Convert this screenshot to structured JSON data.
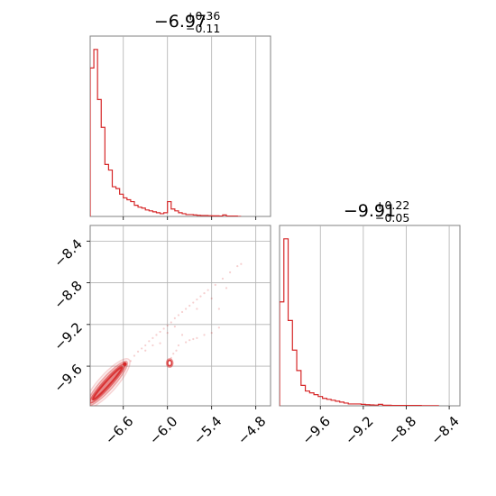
{
  "chart_data": {
    "type": "corner",
    "color": "#d62728",
    "grid": true,
    "panels": [
      {
        "id": "hist_x",
        "type": "histogram",
        "title": {
          "value": "−6.97",
          "plus": "+0.36",
          "minus": "−0.11"
        },
        "xlim": [
          -7.05,
          -4.6
        ],
        "x_ticks": [
          -6.6,
          -6.0,
          -5.4,
          -4.8
        ],
        "bin_edges": [
          -7.05,
          -7.0,
          -6.95,
          -6.9,
          -6.85,
          -6.8,
          -6.75,
          -6.7,
          -6.65,
          -6.6,
          -6.55,
          -6.5,
          -6.45,
          -6.4,
          -6.35,
          -6.3,
          -6.25,
          -6.2,
          -6.15,
          -6.1,
          -6.05,
          -6.0,
          -5.95,
          -5.9,
          -5.85,
          -5.8,
          -5.75,
          -5.7,
          -5.65,
          -5.6,
          -5.55,
          -5.5,
          -5.45,
          -5.4,
          -5.35,
          -5.3,
          -5.25,
          -5.2,
          -5.15,
          -5.1,
          -5.05,
          -5.0
        ],
        "counts": [
          0.8,
          0.9,
          0.63,
          0.48,
          0.28,
          0.25,
          0.16,
          0.15,
          0.12,
          0.1,
          0.09,
          0.08,
          0.06,
          0.05,
          0.045,
          0.035,
          0.03,
          0.025,
          0.02,
          0.015,
          0.02,
          0.08,
          0.04,
          0.03,
          0.02,
          0.015,
          0.01,
          0.01,
          0.008,
          0.006,
          0.005,
          0.005,
          0.004,
          0.003,
          0.003,
          0.002,
          0.008,
          0.002,
          0.002,
          0.002,
          0.0
        ]
      },
      {
        "id": "hist_y",
        "type": "histogram",
        "title": {
          "value": "−9.91",
          "plus": "+0.22",
          "minus": "−0.05"
        },
        "xlim": [
          -9.98,
          -8.3
        ],
        "x_ticks": [
          -9.6,
          -9.2,
          -8.8,
          -8.4
        ],
        "bin_edges": [
          -9.98,
          -9.94,
          -9.9,
          -9.86,
          -9.82,
          -9.78,
          -9.74,
          -9.7,
          -9.66,
          -9.62,
          -9.58,
          -9.54,
          -9.5,
          -9.46,
          -9.42,
          -9.38,
          -9.34,
          -9.3,
          -9.26,
          -9.22,
          -9.18,
          -9.14,
          -9.1,
          -9.06,
          -9.02,
          -8.98,
          -8.94,
          -8.9,
          -8.86,
          -8.82,
          -8.78,
          -8.74,
          -8.7,
          -8.66,
          -8.62,
          -8.58,
          -8.54,
          -8.5
        ],
        "counts": [
          0.56,
          0.9,
          0.46,
          0.3,
          0.19,
          0.11,
          0.08,
          0.07,
          0.06,
          0.05,
          0.04,
          0.035,
          0.03,
          0.025,
          0.02,
          0.015,
          0.01,
          0.01,
          0.01,
          0.008,
          0.006,
          0.005,
          0.004,
          0.008,
          0.003,
          0.003,
          0.002,
          0.002,
          0.002,
          0.002,
          0.002,
          0.002,
          0.002,
          0.001,
          0.001,
          0.001,
          0.001
        ]
      },
      {
        "id": "joint",
        "type": "contour",
        "xlim": [
          -7.05,
          -4.6
        ],
        "ylim": [
          -9.98,
          -8.25
        ],
        "x_ticks": [
          -6.6,
          -6.0,
          -5.4,
          -4.8
        ],
        "y_ticks": [
          -9.6,
          -9.2,
          -8.8,
          -8.4
        ],
        "density_core": [
          {
            "x": -6.58,
            "y": -9.58
          },
          {
            "x": -7.05,
            "y": -9.95
          }
        ],
        "secondary_mode": {
          "x": -5.97,
          "y": -9.57
        },
        "scatter": [
          {
            "x": -6.45,
            "y": -9.5
          },
          {
            "x": -6.4,
            "y": -9.46
          },
          {
            "x": -6.35,
            "y": -9.43
          },
          {
            "x": -6.3,
            "y": -9.4
          },
          {
            "x": -6.25,
            "y": -9.36
          },
          {
            "x": -6.2,
            "y": -9.33
          },
          {
            "x": -6.15,
            "y": -9.3
          },
          {
            "x": -6.1,
            "y": -9.27
          },
          {
            "x": -6.05,
            "y": -9.24
          },
          {
            "x": -6.0,
            "y": -9.21
          },
          {
            "x": -5.95,
            "y": -9.18
          },
          {
            "x": -5.9,
            "y": -9.14
          },
          {
            "x": -5.85,
            "y": -9.11
          },
          {
            "x": -5.8,
            "y": -9.08
          },
          {
            "x": -5.75,
            "y": -9.05
          },
          {
            "x": -5.7,
            "y": -9.02
          },
          {
            "x": -5.65,
            "y": -8.99
          },
          {
            "x": -5.6,
            "y": -8.96
          },
          {
            "x": -5.55,
            "y": -8.93
          },
          {
            "x": -5.5,
            "y": -8.9
          },
          {
            "x": -5.45,
            "y": -8.87
          },
          {
            "x": -5.35,
            "y": -8.82
          },
          {
            "x": -5.25,
            "y": -8.76
          },
          {
            "x": -5.15,
            "y": -8.7
          },
          {
            "x": -5.05,
            "y": -8.64
          },
          {
            "x": -5.0,
            "y": -8.62
          },
          {
            "x": -5.4,
            "y": -8.95
          },
          {
            "x": -5.6,
            "y": -9.05
          },
          {
            "x": -6.2,
            "y": -9.4
          },
          {
            "x": -6.1,
            "y": -9.38
          },
          {
            "x": -5.9,
            "y": -9.22
          },
          {
            "x": -5.8,
            "y": -9.3
          },
          {
            "x": -5.7,
            "y": -9.35
          },
          {
            "x": -5.6,
            "y": -9.33
          },
          {
            "x": -5.5,
            "y": -9.3
          },
          {
            "x": -5.4,
            "y": -9.28
          },
          {
            "x": -5.3,
            "y": -9.23
          },
          {
            "x": -5.85,
            "y": -9.4
          },
          {
            "x": -5.75,
            "y": -9.37
          },
          {
            "x": -5.65,
            "y": -9.34
          },
          {
            "x": -6.3,
            "y": -9.45
          },
          {
            "x": -6.0,
            "y": -9.28
          },
          {
            "x": -5.95,
            "y": -9.52
          },
          {
            "x": -5.92,
            "y": -9.48
          },
          {
            "x": -5.88,
            "y": -9.45
          },
          {
            "x": -6.5,
            "y": -9.55
          },
          {
            "x": -5.2,
            "y": -8.85
          },
          {
            "x": -5.3,
            "y": -9.05
          }
        ]
      }
    ]
  }
}
